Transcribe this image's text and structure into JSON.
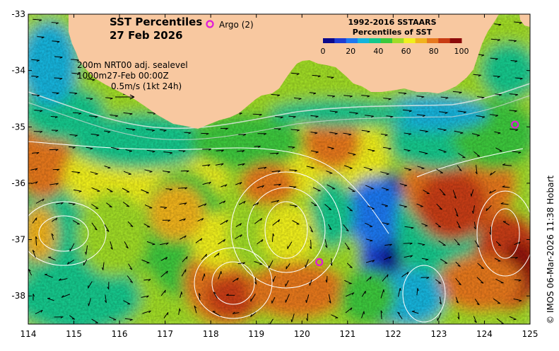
{
  "title": {
    "line1": "SST Percentiles",
    "line2": "27 Feb 2026"
  },
  "argo": {
    "label": "Argo (2)",
    "color": "#e01ad8",
    "floats": [
      {
        "lon": 120.38,
        "lat": -37.4
      },
      {
        "lon": 124.67,
        "lat": -34.96
      }
    ]
  },
  "info": {
    "line1": "200m  NRT00 adj. sealevel",
    "line2": "1000m27-Feb 00:00Z",
    "line3": "0.5m/s (1kt 24h)"
  },
  "legend": {
    "title_line1": "1992-2016 SSTAARS",
    "title_line2": "Percentiles of SST",
    "ticks": [
      "0",
      "20",
      "40",
      "60",
      "80",
      "100"
    ],
    "colors": [
      "#0a0a8c",
      "#1e3cd2",
      "#1e78f0",
      "#14b4dc",
      "#14c88c",
      "#3cc83c",
      "#a0dc28",
      "#f0f01e",
      "#f0b41e",
      "#e6781e",
      "#c83c14",
      "#8c0a0a"
    ]
  },
  "credit": "© IMOS 06-Mar-2026 11:38 Hobart",
  "colors": {
    "land": "#f8c8a0",
    "current_arrow": "#000000",
    "sealevel_contour": "#ffffff",
    "shelf_line": "#e8e8e8"
  },
  "map": {
    "lon_range": [
      114,
      125
    ],
    "lat_range": [
      -38.5,
      -33
    ],
    "x_ticks": [
      "114",
      "115",
      "116",
      "117",
      "118",
      "119",
      "120",
      "121",
      "122",
      "123",
      "124",
      "125"
    ],
    "y_ticks": [
      "-33",
      "-34",
      "-35",
      "-36",
      "-37",
      "-38"
    ]
  }
}
